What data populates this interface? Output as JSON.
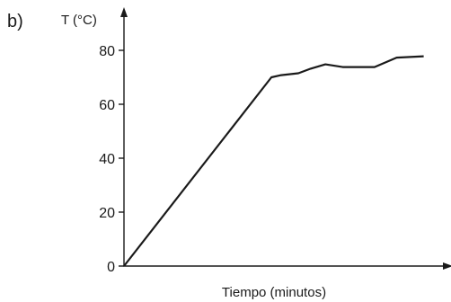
{
  "panel_label": "b)",
  "chart_data": {
    "type": "line",
    "title": "",
    "xlabel": "Tiempo (minutos)",
    "ylabel": "T (°C)",
    "ylim": [
      0,
      90
    ],
    "xlim": [
      0,
      6.4
    ],
    "yticks": [
      0,
      20,
      40,
      60,
      80
    ],
    "ytick_labels": [
      "0",
      "20",
      "40",
      "60",
      "80"
    ],
    "grid": false,
    "legend": "none",
    "series": [
      {
        "x": [
          0,
          3.0,
          3.2,
          3.55,
          3.8,
          4.1,
          4.45,
          4.85,
          5.1,
          5.55,
          6.1
        ],
        "y": [
          0,
          70,
          70.8,
          71.5,
          73.2,
          74.8,
          73.8,
          73.8,
          73.8,
          77.3,
          77.8
        ]
      }
    ]
  }
}
